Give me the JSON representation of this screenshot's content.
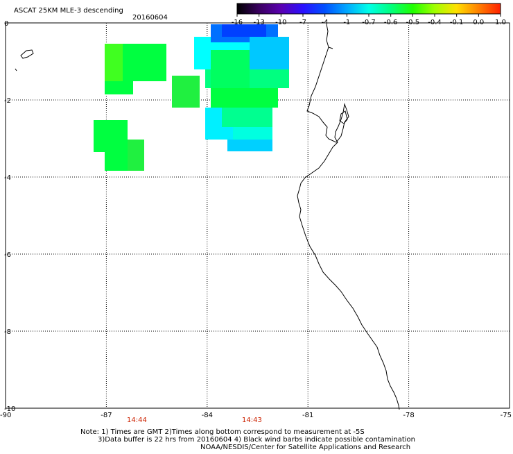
{
  "title": "ASCAT 25KM MLE-3 descending",
  "date": "20160604",
  "colorbar": {
    "labels": [
      "-16",
      "-13",
      "-10",
      "-7",
      "-4",
      "-1",
      "-0.7",
      "-0.6",
      "-0.5",
      "-0.4",
      "-0.1",
      "0.0",
      "1.0"
    ],
    "colors": [
      "#000000",
      "#3a0060",
      "#5a00b0",
      "#2a10ff",
      "#0050ff",
      "#00a8ff",
      "#00ffe8",
      "#00ff80",
      "#20ff00",
      "#a0ff00",
      "#ffe000",
      "#ff8000",
      "#ff2000"
    ]
  },
  "axes": {
    "x_ticks": [
      "-90",
      "-87",
      "-84",
      "-81",
      "-78",
      "-75"
    ],
    "y_ticks": [
      "0",
      "-2",
      "-4",
      "-6",
      "-8",
      "-10"
    ]
  },
  "pass_times": [
    "14:44",
    "14:43"
  ],
  "notes": [
    "Note: 1) Times are GMT 2)Times along bottom correspond to measurement at -5S",
    "3)Data buffer is 22 hrs from 20160604 4) Black wind barbs indicate possible contamination",
    "NOAA/NESDIS/Center for Satellite Applications and Research"
  ],
  "map": {
    "lon_range": [
      -90,
      -75
    ],
    "lat_range": [
      -10,
      0
    ],
    "colors": {
      "green": "#00ff40",
      "green_dark": "#20e820",
      "cyan": "#00ffff",
      "aqua": "#00f0d8",
      "sky": "#00c8ff",
      "blue": "#0060ff",
      "coast": "#000000",
      "grid": "#000000",
      "time_label": "#cc2200"
    }
  }
}
